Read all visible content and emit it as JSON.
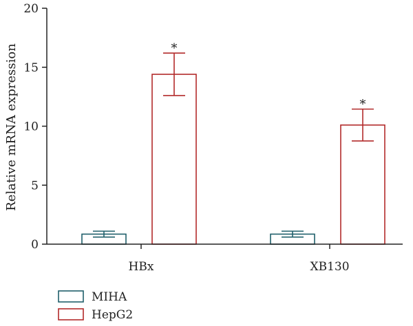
{
  "chart_data": {
    "type": "bar",
    "categories": [
      "HBx",
      "XB130"
    ],
    "ylabel": "Relative mRNA expression",
    "xlabel": "",
    "ylim": [
      0,
      20
    ],
    "yticks": [
      0,
      5,
      10,
      15,
      20
    ],
    "series": [
      {
        "name": "MIHA",
        "color": "#1f5f6b",
        "values": [
          0.85,
          0.85
        ],
        "errors": [
          0.25,
          0.25
        ],
        "annotations": [
          "",
          ""
        ]
      },
      {
        "name": "HepG2",
        "color": "#b22a2a",
        "values": [
          14.4,
          10.1
        ],
        "errors": [
          1.8,
          1.35
        ],
        "annotations": [
          "*",
          "*"
        ]
      }
    ],
    "legend_position": "bottom-left",
    "grid": false
  }
}
